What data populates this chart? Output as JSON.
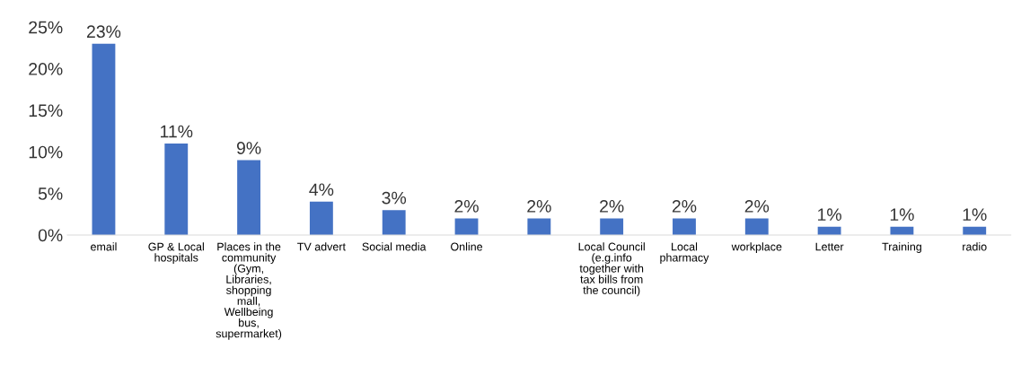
{
  "chart_data": {
    "type": "bar",
    "categories": [
      "email",
      "GP & Local\nhospitals",
      "Places in the\ncommunity\n(Gym,\nLibraries,\nshopping\nmall,\nWellbeing\nbus,\nsupermarket)",
      "TV advert",
      "Social media",
      "Online",
      null,
      "Local Council\n(e.g.info\ntogether with\ntax bills from\nthe council)",
      "Local\npharmacy",
      "workplace",
      "Letter",
      "Training",
      "radio"
    ],
    "values": [
      23,
      11,
      9,
      4,
      3,
      2,
      2,
      2,
      2,
      2,
      1,
      1,
      1
    ],
    "value_labels": [
      "23%",
      "11%",
      "9%",
      "4%",
      "3%",
      "2%",
      "2%",
      "2%",
      "2%",
      "2%",
      "1%",
      "1%",
      "1%"
    ],
    "color": "#4472c4",
    "ylim": [
      0,
      25
    ],
    "yticks": [
      {
        "value": 0,
        "label": "0%"
      },
      {
        "value": 5,
        "label": "5%"
      },
      {
        "value": 10,
        "label": "10%"
      },
      {
        "value": 15,
        "label": "15%"
      },
      {
        "value": 20,
        "label": "20%"
      },
      {
        "value": 25,
        "label": "25%"
      }
    ],
    "grid": false
  }
}
